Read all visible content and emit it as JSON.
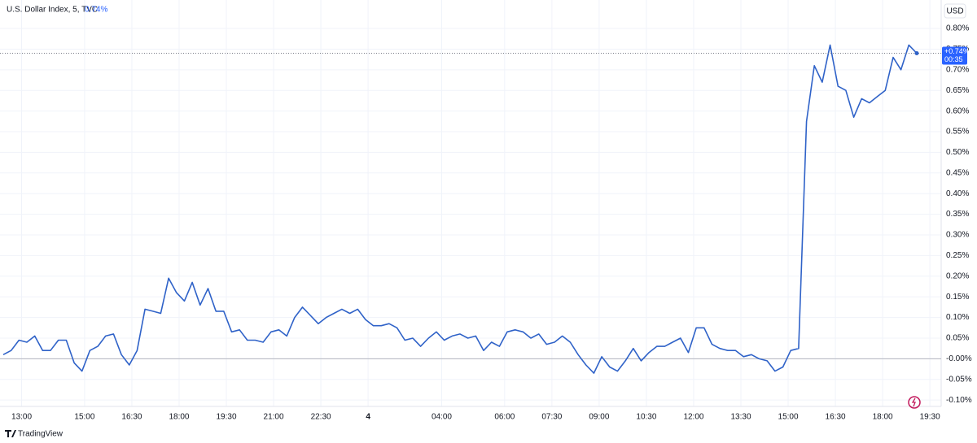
{
  "chart_data": {
    "type": "line",
    "title": "U.S. Dollar Index, 5, TVC",
    "header_value": "0.74%",
    "currency": "USD",
    "price_label": "+0.74%",
    "countdown": "00:35",
    "brand": "TradingView",
    "color": "#2f62c8",
    "values": [
      0.01,
      0.02,
      0.045,
      0.04,
      0.055,
      0.02,
      0.02,
      0.045,
      0.045,
      -0.01,
      -0.03,
      0.02,
      0.03,
      0.055,
      0.06,
      0.01,
      -0.015,
      0.02,
      0.12,
      0.115,
      0.11,
      0.195,
      0.16,
      0.14,
      0.185,
      0.13,
      0.17,
      0.115,
      0.115,
      0.065,
      0.07,
      0.045,
      0.045,
      0.04,
      0.065,
      0.07,
      0.055,
      0.1,
      0.125,
      0.105,
      0.085,
      0.1,
      0.11,
      0.12,
      0.11,
      0.12,
      0.095,
      0.08,
      0.08,
      0.085,
      0.075,
      0.045,
      0.05,
      0.03,
      0.05,
      0.065,
      0.045,
      0.055,
      0.06,
      0.05,
      0.055,
      0.02,
      0.04,
      0.03,
      0.065,
      0.07,
      0.065,
      0.05,
      0.06,
      0.035,
      0.04,
      0.055,
      0.04,
      0.01,
      -0.015,
      -0.035,
      0.005,
      -0.02,
      -0.03,
      -0.005,
      0.025,
      -0.005,
      0.015,
      0.03,
      0.03,
      0.04,
      0.05,
      0.015,
      0.075,
      0.075,
      0.035,
      0.025,
      0.02,
      0.02,
      0.005,
      0.01,
      0,
      -0.005,
      -0.03,
      -0.02,
      0.02,
      0.025,
      0.575,
      0.71,
      0.67,
      0.76,
      0.66,
      0.65,
      0.585,
      0.63,
      0.62,
      0.635,
      0.65,
      0.73,
      0.7,
      0.76,
      0.74
    ],
    "xlim": [
      0,
      119
    ],
    "xticks": [
      {
        "value": 2.33,
        "label": "13:00"
      },
      {
        "value": 10.33,
        "label": "15:00"
      },
      {
        "value": 16.33,
        "label": "16:30"
      },
      {
        "value": 22.33,
        "label": "18:00"
      },
      {
        "value": 28.33,
        "label": "19:30"
      },
      {
        "value": 34.33,
        "label": "21:00"
      },
      {
        "value": 40.33,
        "label": "22:30"
      },
      {
        "value": 46.33,
        "label": "4"
      },
      {
        "value": 55.67,
        "label": "04:00"
      },
      {
        "value": 63.67,
        "label": "06:00"
      },
      {
        "value": 69.67,
        "label": "07:30"
      },
      {
        "value": 75.67,
        "label": "09:00"
      },
      {
        "value": 81.67,
        "label": "10:30"
      },
      {
        "value": 87.67,
        "label": "12:00"
      },
      {
        "value": 93.67,
        "label": "13:30"
      },
      {
        "value": 99.67,
        "label": "15:00"
      },
      {
        "value": 105.67,
        "label": "16:30"
      },
      {
        "value": 111.67,
        "label": "18:00"
      },
      {
        "value": 117.67,
        "label": "19:30"
      }
    ],
    "ylim": [
      -0.145,
      0.869
    ],
    "yticks": [
      {
        "value": 0.8,
        "label": "0.80%"
      },
      {
        "value": 0.75,
        "label": "0.75%"
      },
      {
        "value": 0.7,
        "label": "0.70%"
      },
      {
        "value": 0.65,
        "label": "0.65%"
      },
      {
        "value": 0.6,
        "label": "0.60%"
      },
      {
        "value": 0.55,
        "label": "0.55%"
      },
      {
        "value": 0.5,
        "label": "0.50%"
      },
      {
        "value": 0.45,
        "label": "0.45%"
      },
      {
        "value": 0.4,
        "label": "0.40%"
      },
      {
        "value": 0.35,
        "label": "0.35%"
      },
      {
        "value": 0.3,
        "label": "0.30%"
      },
      {
        "value": 0.25,
        "label": "0.25%"
      },
      {
        "value": 0.2,
        "label": "0.20%"
      },
      {
        "value": 0.15,
        "label": "0.15%"
      },
      {
        "value": 0.1,
        "label": "0.10%"
      },
      {
        "value": 0.05,
        "label": "0.05%"
      },
      {
        "value": 0,
        "label": "-0.00%"
      },
      {
        "value": -0.05,
        "label": "-0.05%"
      },
      {
        "value": -0.1,
        "label": "-0.10%"
      }
    ],
    "grid": true
  }
}
